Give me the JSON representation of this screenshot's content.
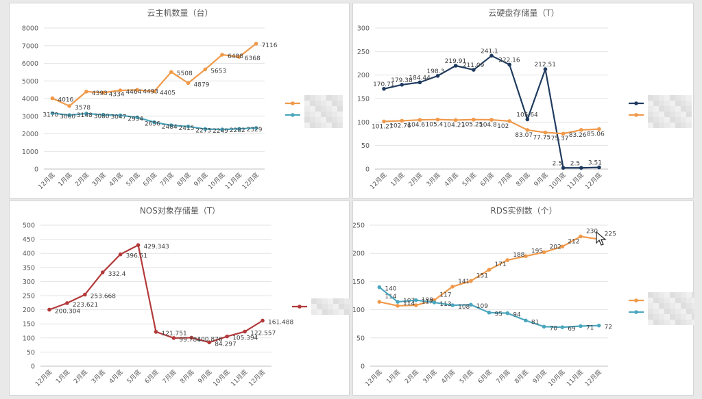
{
  "months": [
    "12月底",
    "1月底",
    "2月底",
    "3月底",
    "4月底",
    "5月底",
    "6月底",
    "7月底",
    "8月底",
    "9月底",
    "10月底",
    "11月底",
    "12月底"
  ],
  "colors": {
    "orange": "#f0994a",
    "teal": "#4ba6be",
    "navy": "#1f3b5f",
    "red": "#b3393a"
  },
  "chart_data": [
    {
      "type": "line",
      "title": "云主机数量（台）",
      "ylim": [
        0,
        8000
      ],
      "ystep": 1000,
      "series": [
        {
          "color": "#f0994a",
          "values": [
            4016,
            3578,
            4393,
            4334,
            4464,
            4493,
            4405,
            5508,
            4879,
            5653,
            6488,
            6368,
            7116
          ],
          "labels": [
            "4016",
            "3578",
            "4393",
            "4334",
            "4464",
            "4493",
            "4405",
            "5508",
            "4879",
            "5653",
            "6488",
            "6368",
            "7116"
          ]
        },
        {
          "color": "#4ba6be",
          "values": [
            3170,
            3060,
            3148,
            3080,
            3047,
            2934,
            2656,
            2484,
            2415,
            2273,
            2249,
            2282,
            2329
          ],
          "labels": [
            "3170",
            "3060",
            "3148",
            "3080",
            "3047",
            "2934",
            "2656",
            "2484",
            "2415",
            "2273",
            "2249",
            "2282",
            "2329"
          ]
        }
      ]
    },
    {
      "type": "line",
      "title": "云硬盘存储量（T）",
      "ylim": [
        0,
        300
      ],
      "ystep": 50,
      "series": [
        {
          "color": "#1f3b5f",
          "values": [
            170.71,
            179.38,
            184.44,
            198.3,
            219.91,
            211.09,
            241.1,
            222.16,
            105.64,
            212.51,
            2.5,
            2.5,
            3.51
          ],
          "labels": [
            "170.71",
            "179.38",
            "184.44",
            "198.3",
            "219.91",
            "211.09",
            "241.1",
            "222.16",
            "105.64",
            "212.51",
            "2.5",
            "2.5",
            "3.51"
          ]
        },
        {
          "color": "#f0994a",
          "values": [
            101.27,
            102.76,
            104.6,
            105.4,
            104.21,
            105.25,
            104.8,
            102,
            83.07,
            77.75,
            75.37,
            83.26,
            85.06
          ],
          "labels": [
            "101.27",
            "102.76",
            "104.6",
            "105.4",
            "104.21",
            "105.25",
            "104.8",
            "102",
            "83.07",
            "77.75",
            "75.37",
            "83.26",
            "85.06"
          ]
        }
      ]
    },
    {
      "type": "line",
      "title": "NOS对象存储量（T）",
      "ylim": [
        0,
        500
      ],
      "ystep": 50,
      "series": [
        {
          "color": "#b3393a",
          "values": [
            200.304,
            223.621,
            253.668,
            332.4,
            396.51,
            429.343,
            121.751,
            99.784,
            100.876,
            84.297,
            105.394,
            122.557,
            161.488
          ],
          "labels": [
            "200.304",
            "223.621",
            "253.668",
            "332.4",
            "396.51",
            "429.343",
            "121.751",
            "99.784",
            "100.876",
            "84.297",
            "105.394",
            "122.557",
            "161.488"
          ]
        }
      ]
    },
    {
      "type": "line",
      "title": "RDS实例数（个）",
      "ylim": [
        0,
        250
      ],
      "ystep": 50,
      "series": [
        {
          "color": "#f0994a",
          "values": [
            114,
            107,
            108,
            117,
            141,
            151,
            171,
            188,
            195,
            202,
            212,
            230,
            225
          ],
          "labels": [
            "114",
            "107",
            "108",
            "117",
            "141",
            "151",
            "171",
            "188",
            "195",
            "202",
            "212",
            "230",
            "225"
          ]
        },
        {
          "color": "#4ba6be",
          "values": [
            140,
            114,
            117,
            113,
            108,
            109,
            95,
            94,
            81,
            70,
            69,
            71,
            72
          ],
          "labels": [
            "140",
            "114",
            "117",
            "113",
            "108",
            "109",
            "95",
            "94",
            "81",
            "70",
            "69",
            "71",
            "72"
          ]
        }
      ]
    }
  ]
}
